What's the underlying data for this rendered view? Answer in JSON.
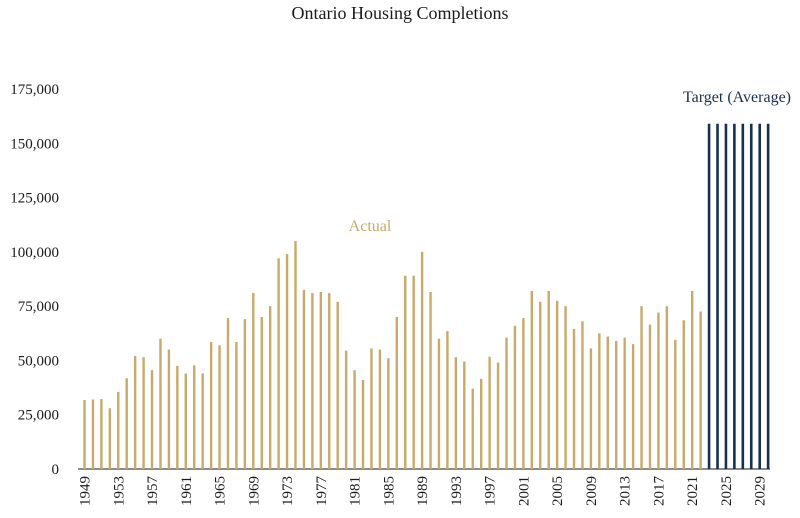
{
  "chart_data": {
    "type": "bar",
    "title": "Ontario Housing Completions",
    "xlabel": "",
    "ylabel": "",
    "ylim": [
      0,
      175000
    ],
    "yticks": [
      "0",
      "25,000",
      "50,000",
      "75,000",
      "100,000",
      "125,000",
      "150,000",
      "175,000"
    ],
    "xtick_labels": [
      "1949",
      "1953",
      "1957",
      "1961",
      "1965",
      "1969",
      "1973",
      "1977",
      "1981",
      "1985",
      "1989",
      "1993",
      "1997",
      "2001",
      "2005",
      "2009",
      "2013",
      "2017",
      "2021",
      "2025",
      "2029"
    ],
    "grid": false,
    "legend": "none",
    "annotations": {
      "actual_label": "Actual",
      "target_label": "Target (Average)"
    },
    "series": [
      {
        "name": "Actual",
        "color": "#c8a96a",
        "x": [
          1949,
          1950,
          1951,
          1952,
          1953,
          1954,
          1955,
          1956,
          1957,
          1958,
          1959,
          1960,
          1961,
          1962,
          1963,
          1964,
          1965,
          1966,
          1967,
          1968,
          1969,
          1970,
          1971,
          1972,
          1973,
          1974,
          1975,
          1976,
          1977,
          1978,
          1979,
          1980,
          1981,
          1982,
          1983,
          1984,
          1985,
          1986,
          1987,
          1988,
          1989,
          1990,
          1991,
          1992,
          1993,
          1994,
          1995,
          1996,
          1997,
          1998,
          1999,
          2000,
          2001,
          2002,
          2003,
          2004,
          2005,
          2006,
          2007,
          2008,
          2009,
          2010,
          2011,
          2012,
          2013,
          2014,
          2015,
          2016,
          2017,
          2018,
          2019,
          2020,
          2021,
          2022
        ],
        "values": [
          31800,
          32000,
          32200,
          28000,
          35500,
          41800,
          52000,
          51500,
          45500,
          60000,
          55000,
          47500,
          44000,
          47700,
          44000,
          58500,
          57000,
          69500,
          58500,
          69000,
          81000,
          70000,
          75000,
          97000,
          99000,
          105000,
          82500,
          81000,
          81500,
          81000,
          77000,
          54500,
          45500,
          41000,
          55500,
          55000,
          51000,
          70000,
          89000,
          89000,
          100000,
          81500,
          60000,
          63500,
          51500,
          49500,
          37000,
          41500,
          51700,
          49000,
          60500,
          66000,
          69500,
          82000,
          77000,
          82000,
          77500,
          75000,
          64500,
          68000,
          55500,
          62500,
          61000,
          59000,
          60500,
          57500,
          75000,
          66500,
          72000,
          75000,
          59500,
          68500,
          82000,
          72500
        ]
      },
      {
        "name": "Target (Average)",
        "color": "#17304f",
        "x": [
          2023,
          2024,
          2025,
          2026,
          2027,
          2028,
          2029,
          2030
        ],
        "values": [
          159000,
          159000,
          159000,
          159000,
          159000,
          159000,
          159000,
          159000
        ]
      }
    ]
  }
}
